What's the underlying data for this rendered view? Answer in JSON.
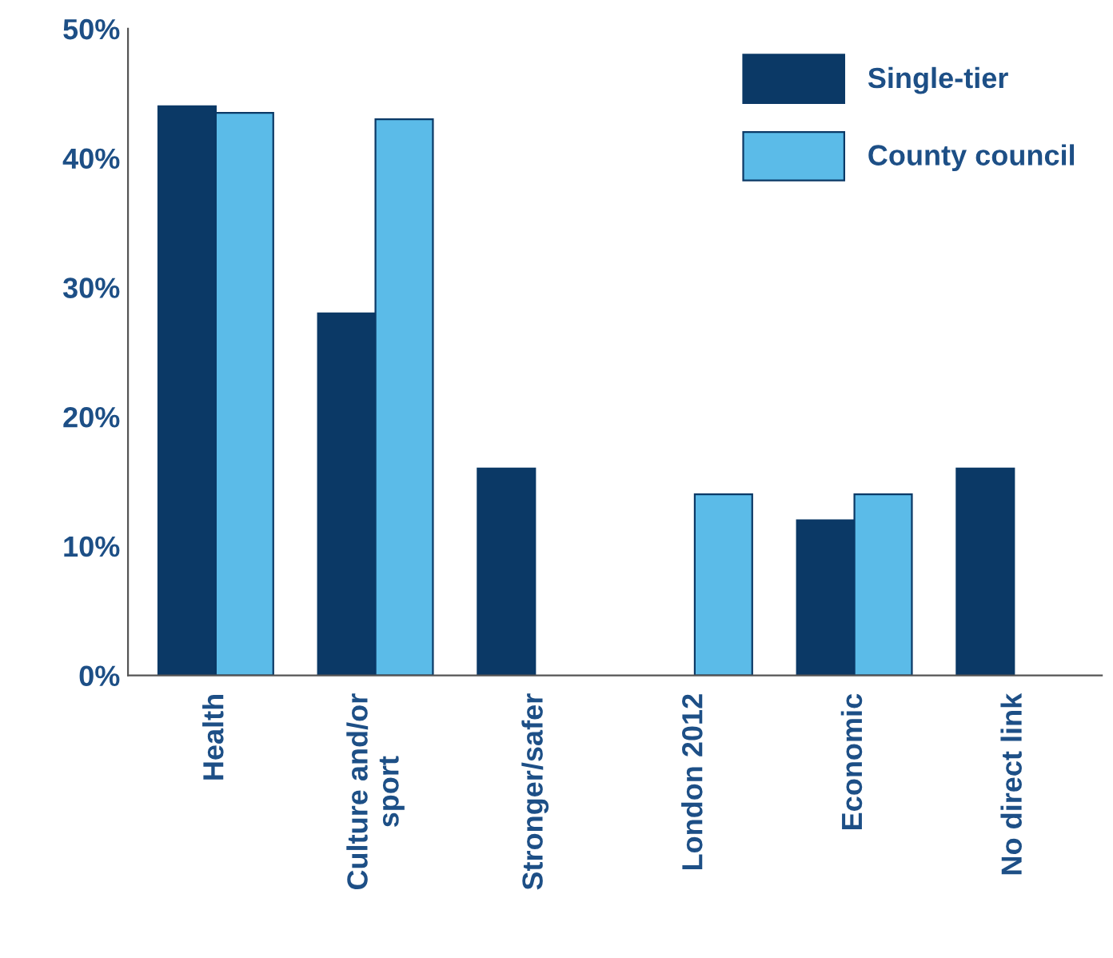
{
  "chart_data": {
    "type": "bar",
    "categories": [
      "Health",
      "Culture and/or\nsport",
      "Stronger/safer",
      "London 2012",
      "Economic",
      "No direct link"
    ],
    "series": [
      {
        "name": "Single-tier",
        "color": "#0b3966",
        "values": [
          44,
          28,
          16,
          null,
          12,
          16
        ]
      },
      {
        "name": "County council",
        "color": "#5bbbe8",
        "values": [
          43.5,
          43,
          null,
          14,
          14,
          null
        ]
      }
    ],
    "ylim": [
      0,
      50
    ],
    "yticks": [
      {
        "value": 0,
        "label": "0%"
      },
      {
        "value": 10,
        "label": "10%"
      },
      {
        "value": 20,
        "label": "20%"
      },
      {
        "value": 30,
        "label": "30%"
      },
      {
        "value": 40,
        "label": "40%"
      },
      {
        "value": 50,
        "label": "50%"
      }
    ],
    "grid": false,
    "legend": "top right"
  }
}
